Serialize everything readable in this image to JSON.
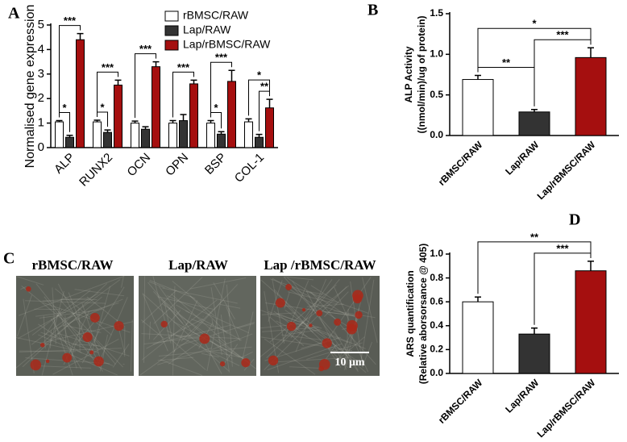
{
  "panel_labels": [
    "A",
    "B",
    "C",
    "D"
  ],
  "image_panel": {
    "titles": [
      "rBMSC/RAW",
      "Lap/RAW",
      "Lap /rBMSC/RAW"
    ],
    "scale_bar": "10 μm"
  },
  "chart_data": [
    {
      "type": "grouped-bar",
      "y_label": "Normalised gene expression",
      "categories": [
        "ALP",
        "RUNX2",
        "OCN",
        "OPN",
        "BSP",
        "COL-1"
      ],
      "series": [
        {
          "name": "rBMSC/RAW",
          "color": "#ffffff",
          "values": [
            1.05,
            1.05,
            1.0,
            1.0,
            1.0,
            1.05
          ],
          "errors": [
            0.05,
            0.07,
            0.08,
            0.1,
            0.1,
            0.12
          ]
        },
        {
          "name": "Lap/RAW",
          "color": "#333333",
          "values": [
            0.42,
            0.62,
            0.75,
            1.1,
            0.55,
            0.42
          ],
          "errors": [
            0.08,
            0.1,
            0.1,
            0.25,
            0.1,
            0.12
          ]
        },
        {
          "name": "Lap/rBMSC/RAW",
          "color": "#a50f0f",
          "values": [
            4.4,
            2.55,
            3.3,
            2.6,
            2.7,
            1.62
          ],
          "errors": [
            0.25,
            0.2,
            0.2,
            0.15,
            0.45,
            0.35
          ]
        }
      ],
      "ylim": [
        0,
        5
      ],
      "yticks": [
        0,
        1,
        2,
        3,
        4,
        5
      ],
      "annotations": [
        {
          "text": "*",
          "category": "ALP",
          "pair": [
            "rBMSC/RAW",
            "Lap/RAW"
          ]
        },
        {
          "text": "***",
          "category": "ALP",
          "pair": [
            "rBMSC/RAW",
            "Lap/rBMSC/RAW"
          ]
        },
        {
          "text": "*",
          "category": "RUNX2",
          "pair": [
            "rBMSC/RAW",
            "Lap/RAW"
          ]
        },
        {
          "text": "***",
          "category": "RUNX2",
          "pair": [
            "rBMSC/RAW",
            "Lap/rBMSC/RAW"
          ]
        },
        {
          "text": "***",
          "category": "OCN",
          "pair": [
            "rBMSC/RAW",
            "Lap/rBMSC/RAW"
          ]
        },
        {
          "text": "***",
          "category": "OPN",
          "pair": [
            "rBMSC/RAW",
            "Lap/rBMSC/RAW"
          ]
        },
        {
          "text": "*",
          "category": "BSP",
          "pair": [
            "rBMSC/RAW",
            "Lap/RAW"
          ]
        },
        {
          "text": "***",
          "category": "BSP",
          "pair": [
            "rBMSC/RAW",
            "Lap/rBMSC/RAW"
          ]
        },
        {
          "text": "**",
          "category": "COL-1",
          "pair": [
            "Lap/RAW",
            "Lap/rBMSC/RAW"
          ]
        },
        {
          "text": "*",
          "category": "COL-1",
          "pair": [
            "rBMSC/RAW",
            "Lap/rBMSC/RAW"
          ]
        }
      ]
    },
    {
      "type": "bar",
      "y_label": [
        "ALP Activity",
        "((nmol/min)/ug of protein)"
      ],
      "categories": [
        "rBMSC/RAW",
        "Lap/RAW",
        "Lap/rBMSC/RAW"
      ],
      "values": [
        0.69,
        0.29,
        0.96
      ],
      "errors": [
        0.05,
        0.03,
        0.12
      ],
      "colors": [
        "#ffffff",
        "#333333",
        "#a50f0f"
      ],
      "ylim": [
        0,
        1.5
      ],
      "yticks": [
        {
          "value": 0,
          "label": "0.0"
        },
        0.5,
        {
          "value": 1,
          "label": "1.0"
        },
        1.5
      ],
      "annotations": [
        {
          "text": "**",
          "pair": [
            "rBMSC/RAW",
            "Lap/RAW"
          ]
        },
        {
          "text": "***",
          "pair": [
            "Lap/RAW",
            "Lap/rBMSC/RAW"
          ]
        },
        {
          "text": "*",
          "pair": [
            "rBMSC/RAW",
            "Lap/rBMSC/RAW"
          ]
        }
      ]
    },
    {
      "type": "bar",
      "y_label": [
        "ARS quantification",
        "(Relative aborsorsance @ 405)"
      ],
      "categories": [
        "rBMSC/RAW",
        "Lap/RAW",
        "Lap/rBMSC/RAW"
      ],
      "values": [
        0.6,
        0.33,
        0.86
      ],
      "errors": [
        0.04,
        0.05,
        0.08
      ],
      "colors": [
        "#ffffff",
        "#333333",
        "#a50f0f"
      ],
      "ylim": [
        0,
        1
      ],
      "yticks": [
        {
          "value": 0,
          "label": "0.0"
        },
        0.2,
        0.4,
        0.6,
        0.8,
        {
          "value": 1,
          "label": "1.0"
        }
      ],
      "annotations": [
        {
          "text": "***",
          "pair": [
            "Lap/RAW",
            "Lap/rBMSC/RAW"
          ]
        },
        {
          "text": "**",
          "pair": [
            "rBMSC/RAW",
            "Lap/rBMSC/RAW"
          ]
        }
      ]
    }
  ]
}
